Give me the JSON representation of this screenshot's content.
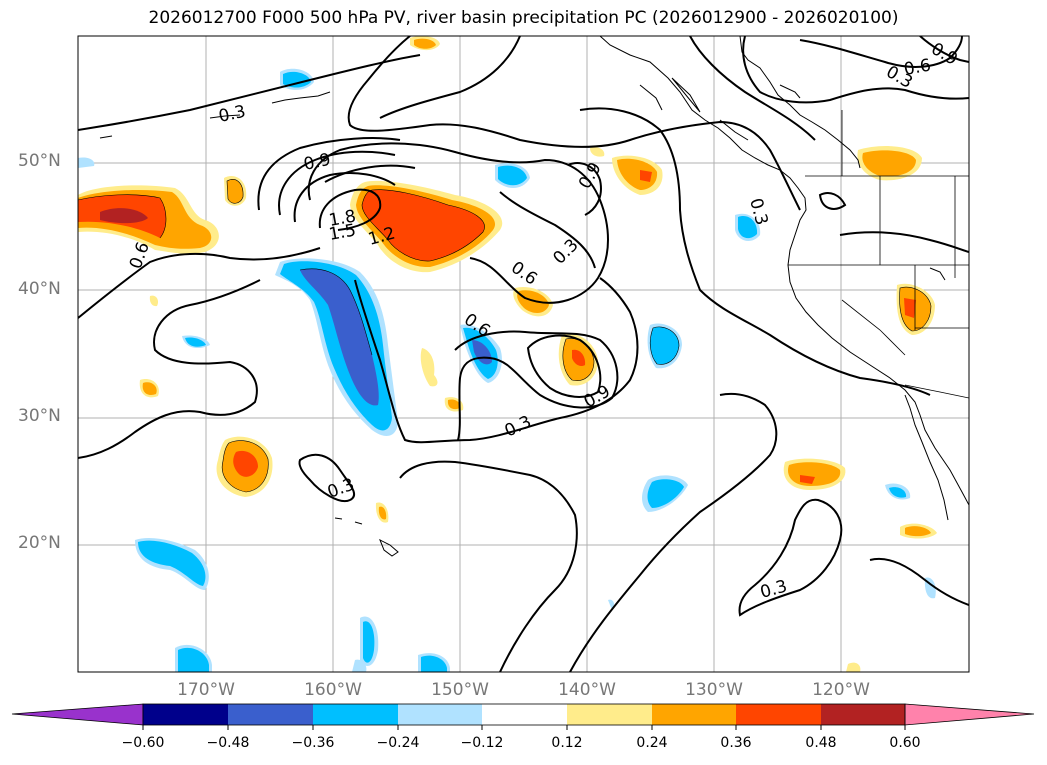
{
  "title": "2026012700 F000 500 hPa PV, river basin precipitation PC (2026012900 - 2026020100)",
  "lat_labels": [
    "50°N",
    "40°N",
    "30°N",
    "20°N"
  ],
  "lon_labels": [
    "170°W",
    "160°W",
    "150°W",
    "140°W",
    "130°W",
    "120°W"
  ],
  "contour_labels": [
    "0.9",
    "1.8",
    "1.5",
    "1.2",
    "0.6",
    "0.3",
    "0.6",
    "0.9",
    "0.3",
    "0.6",
    "0.9",
    "0.3",
    "0.3",
    "0.3",
    "0.6",
    "0.3",
    "0.9",
    "0.3"
  ],
  "colorbar": {
    "ticks": [
      "−0.60",
      "−0.48",
      "−0.36",
      "−0.24",
      "−0.12",
      "0.12",
      "0.24",
      "0.36",
      "0.48",
      "0.60"
    ],
    "colors": [
      "#9932cc",
      "#00008b",
      "#3a5fcd",
      "#00bfff",
      "#b0e2ff",
      "#ffffff",
      "#ffec8b",
      "#ffa500",
      "#ff4500",
      "#b22222",
      "#ff82ab"
    ]
  },
  "colors": {
    "pos_light": "#ffec8b",
    "pos_med": "#ffa500",
    "pos_strong": "#ff4500",
    "pos_max": "#b22222",
    "neg_light": "#b0e2ff",
    "neg_med": "#00bfff",
    "neg_strong": "#3a5fcd"
  }
}
